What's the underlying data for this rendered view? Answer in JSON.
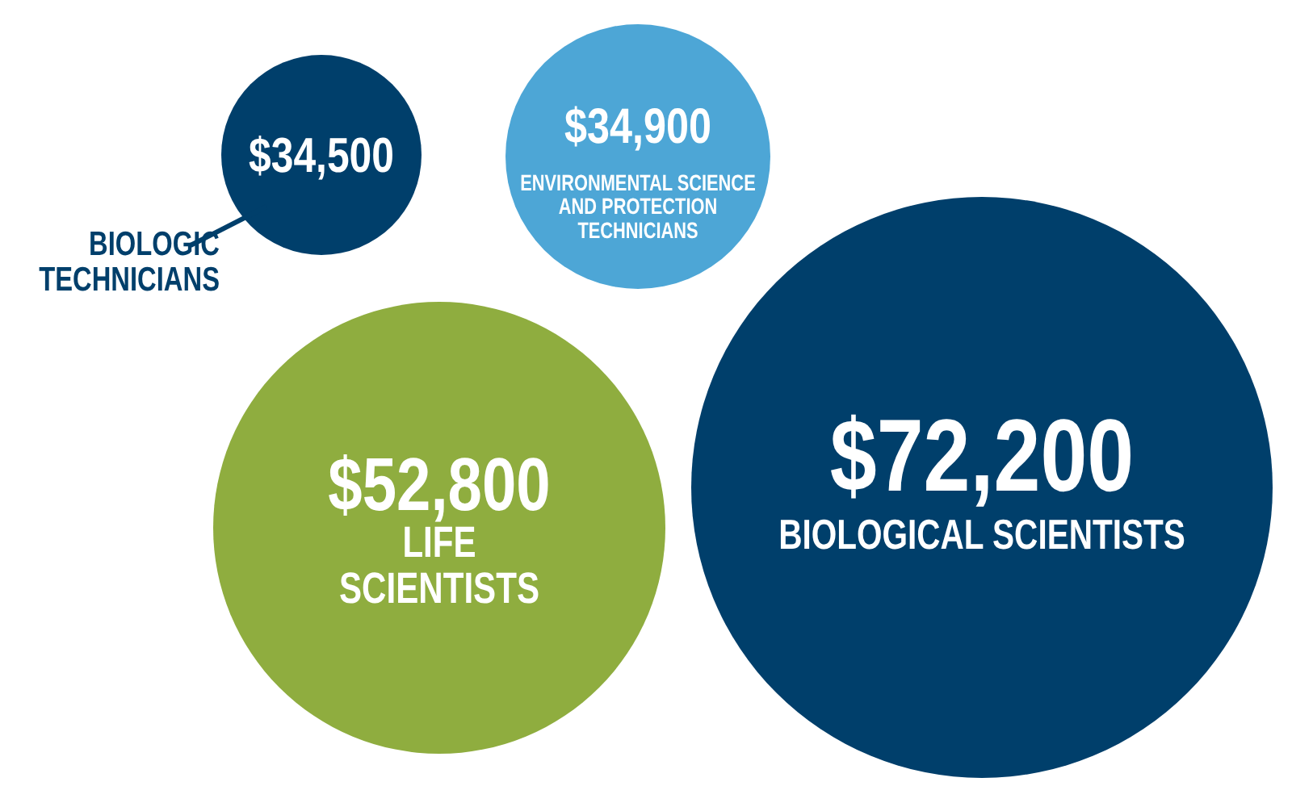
{
  "chart_data": {
    "type": "other",
    "categories": [
      "BIOLOGIC TECHNICIANS",
      "ENVIRONMENTAL SCIENCE AND PROTECTION TECHNICIANS",
      "LIFE SCIENTISTS",
      "BIOLOGICAL SCIENTISTS"
    ],
    "values": [
      34500,
      34900,
      52800,
      72200
    ],
    "value_labels": [
      "$34,500",
      "$34,900",
      "$52,800",
      "$72,200"
    ],
    "colors": [
      "#003f6b",
      "#4da6d6",
      "#8fad3f",
      "#003f6b"
    ]
  }
}
